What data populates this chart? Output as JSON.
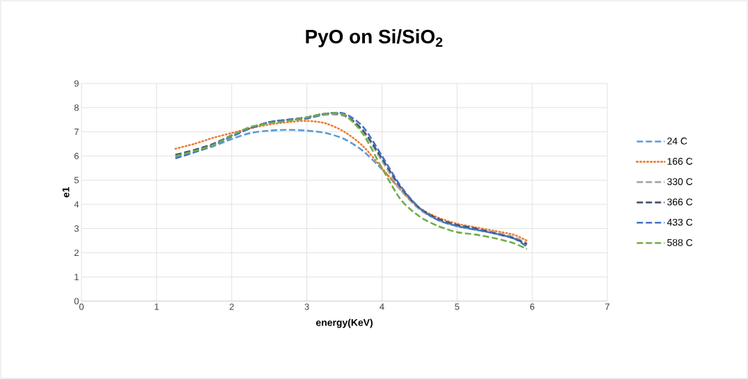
{
  "chart_data": {
    "type": "line",
    "title": "PyO on Si/SiO$_{2}$",
    "xlabel": "energy(KeV)",
    "ylabel": "e1",
    "x": [
      1.25,
      1.5,
      1.75,
      2,
      2.25,
      2.5,
      2.75,
      3,
      3.25,
      3.5,
      3.75,
      4,
      4.25,
      4.5,
      4.75,
      5,
      5.25,
      5.5,
      5.75,
      5.93
    ],
    "series": [
      {
        "name": "24 C",
        "color": "#5b9bd5",
        "line_style": "dashed",
        "values": [
          5.95,
          6.15,
          6.4,
          6.7,
          6.95,
          7.05,
          7.08,
          7.05,
          6.95,
          6.7,
          6.2,
          5.45,
          4.6,
          3.8,
          3.35,
          3.1,
          2.95,
          2.8,
          2.6,
          2.35
        ]
      },
      {
        "name": "166 C",
        "color": "#ed7d31",
        "line_style": "dotted",
        "values": [
          6.3,
          6.5,
          6.75,
          6.95,
          7.15,
          7.3,
          7.4,
          7.45,
          7.35,
          7.0,
          6.4,
          5.5,
          4.6,
          3.85,
          3.45,
          3.2,
          3.05,
          2.9,
          2.75,
          2.5
        ]
      },
      {
        "name": "330 C",
        "color": "#a5a5a5",
        "line_style": "dashed",
        "values": [
          6.0,
          6.2,
          6.45,
          6.85,
          7.15,
          7.35,
          7.45,
          7.55,
          7.7,
          7.65,
          7.0,
          5.8,
          4.6,
          3.8,
          3.35,
          3.15,
          3.0,
          2.85,
          2.65,
          2.4
        ]
      },
      {
        "name": "366 C",
        "color": "#44546a",
        "line_style": "dashed",
        "values": [
          6.05,
          6.25,
          6.5,
          6.85,
          7.15,
          7.4,
          7.5,
          7.6,
          7.75,
          7.7,
          7.05,
          5.9,
          4.7,
          3.85,
          3.4,
          3.15,
          3.0,
          2.8,
          2.6,
          2.35
        ]
      },
      {
        "name": "433 C",
        "color": "#4472c4",
        "line_style": "dashed",
        "values": [
          5.9,
          6.15,
          6.45,
          6.8,
          7.15,
          7.4,
          7.5,
          7.55,
          7.75,
          7.75,
          7.2,
          6.0,
          4.75,
          3.85,
          3.35,
          3.1,
          2.95,
          2.8,
          2.6,
          2.25
        ]
      },
      {
        "name": "588 C",
        "color": "#70ad47",
        "line_style": "dashed",
        "values": [
          6.0,
          6.2,
          6.45,
          6.85,
          7.2,
          7.35,
          7.45,
          7.6,
          7.75,
          7.7,
          6.9,
          5.5,
          4.2,
          3.5,
          3.1,
          2.85,
          2.75,
          2.6,
          2.4,
          2.15
        ]
      }
    ],
    "xlim": [
      0,
      7
    ],
    "xticks": [
      0,
      1,
      2,
      3,
      4,
      5,
      6,
      7
    ],
    "ylim": [
      0,
      9
    ],
    "yticks": [
      0,
      1,
      2,
      3,
      4,
      5,
      6,
      7,
      8,
      9
    ],
    "grid": true,
    "legend": "right",
    "marker": "none"
  }
}
